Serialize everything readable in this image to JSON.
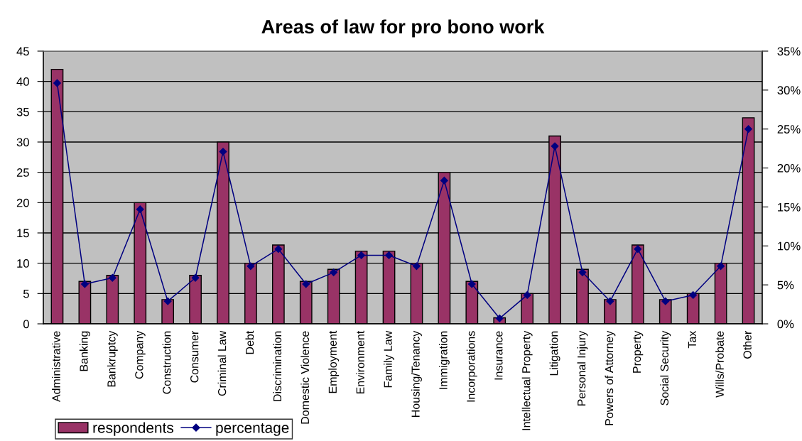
{
  "chart_data": {
    "type": "bar",
    "title": "Areas of law for pro bono work",
    "categories": [
      "Administrative",
      "Banking",
      "Bankruptcy",
      "Company",
      "Construction",
      "Consumer",
      "Criminal Law",
      "Debt",
      "Discrimination",
      "Domestic Violence",
      "Employment",
      "Environment",
      "Family Law",
      "Housing/Tenancy",
      "Immigration",
      "Incorporations",
      "Insurance",
      "Intellectual Property",
      "Litigation",
      "Personal Injury",
      "Powers of Attorney",
      "Property",
      "Social Security",
      "Tax",
      "Wills/Probate",
      "Other"
    ],
    "series": [
      {
        "name": "respondents",
        "color": "#993366",
        "values": [
          42,
          7,
          8,
          20,
          4,
          8,
          30,
          10,
          13,
          7,
          9,
          12,
          12,
          10,
          25,
          7,
          1,
          5,
          31,
          9,
          4,
          13,
          4,
          5,
          10,
          34
        ]
      },
      {
        "name": "percentage",
        "type": "line",
        "axis": "y2",
        "color": "#000080",
        "values": [
          30.9,
          5.1,
          5.9,
          14.7,
          2.9,
          5.9,
          22.1,
          7.4,
          9.6,
          5.1,
          6.6,
          8.8,
          8.8,
          7.4,
          18.4,
          5.1,
          0.7,
          3.7,
          22.8,
          6.6,
          2.9,
          9.6,
          2.9,
          3.7,
          7.4,
          25.0
        ]
      }
    ],
    "ylim": [
      0,
      45
    ],
    "yticks": [
      0,
      5,
      10,
      15,
      20,
      25,
      30,
      35,
      40,
      45
    ],
    "y2lim": [
      0,
      35
    ],
    "y2ticks": [
      {
        "value": 0,
        "label": "0%"
      },
      {
        "value": 5,
        "label": "5%"
      },
      {
        "value": 10,
        "label": "10%"
      },
      {
        "value": 15,
        "label": "15%"
      },
      {
        "value": 20,
        "label": "20%"
      },
      {
        "value": 25,
        "label": "25%"
      },
      {
        "value": 30,
        "label": "30%"
      },
      {
        "value": 35,
        "label": "35%"
      }
    ],
    "marker": "diamond",
    "grid": "y",
    "legend": "bottom left"
  }
}
